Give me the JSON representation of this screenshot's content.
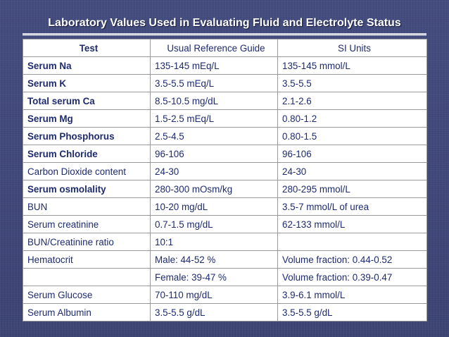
{
  "title": "Laboratory Values Used in Evaluating Fluid and Electrolyte Status",
  "table": {
    "headers": [
      "Test",
      "Usual Reference Guide",
      "SI Units"
    ],
    "rows": [
      {
        "test": "Serum Na",
        "ref": "135-145 mEq/L",
        "si": "135-145 mmol/L",
        "bold": true
      },
      {
        "test": "Serum K",
        "ref": "3.5-5.5 mEq/L",
        "si": "3.5-5.5",
        "bold": true
      },
      {
        "test": "Total serum Ca",
        "ref": "8.5-10.5 mg/dL",
        "si": "2.1-2.6",
        "bold": true
      },
      {
        "test": "Serum Mg",
        "ref": "1.5-2.5 mEq/L",
        "si": "0.80-1.2",
        "bold": true
      },
      {
        "test": "Serum Phosphorus",
        "ref": "2.5-4.5",
        "si": "0.80-1.5",
        "bold": true
      },
      {
        "test": "Serum Chloride",
        "ref": "96-106",
        "si": "96-106",
        "bold": true
      },
      {
        "test": "Carbon Dioxide content",
        "ref": "24-30",
        "si": "24-30",
        "bold": false
      },
      {
        "test": "Serum osmolality",
        "ref": "280-300 mOsm/kg",
        "si": "280-295 mmol/L",
        "bold": true
      },
      {
        "test": "BUN",
        "ref": "10-20 mg/dL",
        "si": "3.5-7 mmol/L of urea",
        "bold": false
      },
      {
        "test": "Serum creatinine",
        "ref": "0.7-1.5 mg/dL",
        "si": "62-133 mmol/L",
        "bold": false
      },
      {
        "test": "BUN/Creatinine ratio",
        "ref": "10:1",
        "si": "",
        "bold": false
      },
      {
        "test": "Hematocrit",
        "ref": "Male: 44-52 %",
        "si": "Volume fraction: 0.44-0.52",
        "bold": false
      },
      {
        "test": "",
        "ref": "Female: 39-47 %",
        "si": "Volume fraction: 0.39-0.47",
        "bold": false
      },
      {
        "test": "Serum Glucose",
        "ref": "70-110 mg/dL",
        "si": "3.9-6.1 mmol/L",
        "bold": false
      },
      {
        "test": "Serum Albumin",
        "ref": "3.5-5.5 g/dL",
        "si": "3.5-5.5 g/dL",
        "bold": false
      }
    ]
  },
  "colors": {
    "background": "#41497a",
    "table_text": "#1e2b6e",
    "table_background": "#ffffff",
    "grid_lines": "#9a9a9a",
    "title_text": "#ffffff"
  }
}
